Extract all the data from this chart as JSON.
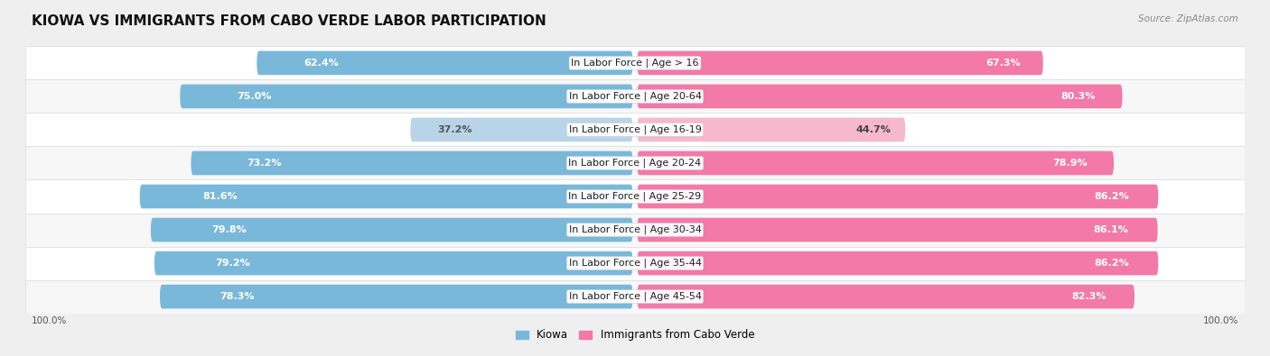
{
  "title": "KIOWA VS IMMIGRANTS FROM CABO VERDE LABOR PARTICIPATION",
  "source": "Source: ZipAtlas.com",
  "categories": [
    "In Labor Force | Age > 16",
    "In Labor Force | Age 20-64",
    "In Labor Force | Age 16-19",
    "In Labor Force | Age 20-24",
    "In Labor Force | Age 25-29",
    "In Labor Force | Age 30-34",
    "In Labor Force | Age 35-44",
    "In Labor Force | Age 45-54"
  ],
  "kiowa_values": [
    62.4,
    75.0,
    37.2,
    73.2,
    81.6,
    79.8,
    79.2,
    78.3
  ],
  "caboverde_values": [
    67.3,
    80.3,
    44.7,
    78.9,
    86.2,
    86.1,
    86.2,
    82.3
  ],
  "kiowa_color": "#7ab8d9",
  "kiowa_color_light": "#b8d4e8",
  "caboverde_color": "#f279a8",
  "caboverde_color_light": "#f5b8cc",
  "bar_height": 0.72,
  "bg_color": "#efefef",
  "row_bg_even": "#ffffff",
  "row_bg_odd": "#f7f7f7",
  "legend_kiowa": "Kiowa",
  "legend_caboverde": "Immigrants from Cabo Verde",
  "title_fontsize": 11,
  "label_fontsize": 8,
  "value_fontsize": 8
}
